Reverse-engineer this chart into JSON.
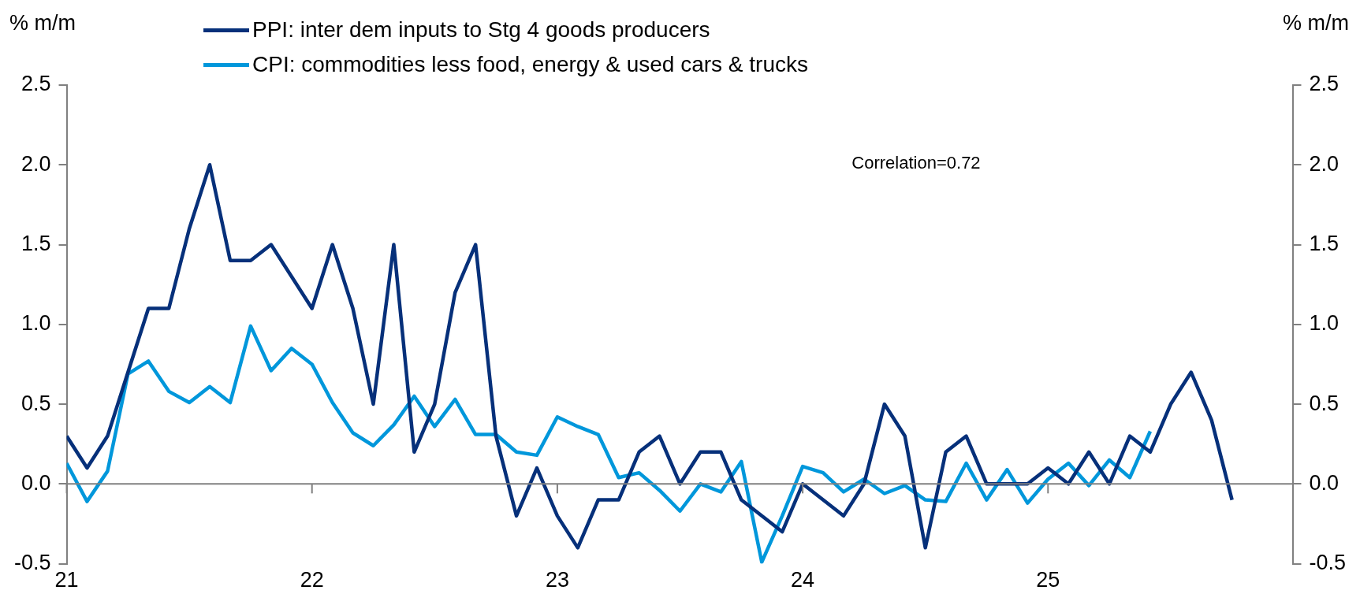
{
  "chart_data": {
    "type": "line",
    "ylabel": "% m/m",
    "y2label": "% m/m",
    "legend": "top",
    "annotations": [
      "Correlation=0.72"
    ],
    "xlim": [
      "2021",
      "2026"
    ],
    "xticks": [
      {
        "value": "2021",
        "label": "21"
      },
      {
        "value": "2022",
        "label": "22"
      },
      {
        "value": "2023",
        "label": "23"
      },
      {
        "value": "2024",
        "label": "24"
      },
      {
        "value": "2025",
        "label": "25"
      }
    ],
    "ylim": [
      -0.5,
      2.5
    ],
    "yticks": [
      {
        "value": -0.5,
        "label": "-0.5"
      },
      {
        "value": 0,
        "label": "0.0"
      },
      {
        "value": 0.5,
        "label": "0.5"
      },
      {
        "value": 1,
        "label": "1.0"
      },
      {
        "value": 1.5,
        "label": "1.5"
      },
      {
        "value": 2,
        "label": "2.0"
      },
      {
        "value": 2.5,
        "label": "2.5"
      }
    ],
    "y2lim": [
      -0.5,
      2.5
    ],
    "y2ticks": [
      {
        "value": -0.5,
        "label": "-0.5"
      },
      {
        "value": 0,
        "label": "0.0"
      },
      {
        "value": 0.5,
        "label": "0.5"
      },
      {
        "value": 1,
        "label": "1.0"
      },
      {
        "value": 1.5,
        "label": "1.5"
      },
      {
        "value": 2,
        "label": "2.0"
      },
      {
        "value": 2.5,
        "label": "2.5"
      }
    ],
    "marker": "none",
    "line_style": "solid",
    "x": [
      "2021-01",
      "2021-02",
      "2021-03",
      "2021-04",
      "2021-05",
      "2021-06",
      "2021-07",
      "2021-08",
      "2021-09",
      "2021-10",
      "2021-11",
      "2021-12",
      "2022-01",
      "2022-02",
      "2022-03",
      "2022-04",
      "2022-05",
      "2022-06",
      "2022-07",
      "2022-08",
      "2022-09",
      "2022-10",
      "2022-11",
      "2022-12",
      "2023-01",
      "2023-02",
      "2023-03",
      "2023-04",
      "2023-05",
      "2023-06",
      "2023-07",
      "2023-08",
      "2023-09",
      "2023-10",
      "2023-11",
      "2023-12",
      "2024-01",
      "2024-02",
      "2024-03",
      "2024-04",
      "2024-05",
      "2024-06",
      "2024-07",
      "2024-08",
      "2024-09",
      "2024-10",
      "2024-11",
      "2024-12",
      "2025-01",
      "2025-02",
      "2025-03",
      "2025-04",
      "2025-05",
      "2025-06",
      "2025-07",
      "2025-08",
      "2025-09",
      "2025-10"
    ],
    "series": [
      {
        "name": "PPI: inter dem inputs to Stg 4 goods producers",
        "color": "#06307a",
        "values": [
          0.3,
          0.1,
          0.3,
          0.7,
          1.1,
          1.1,
          1.6,
          2.0,
          1.4,
          1.4,
          1.5,
          1.3,
          1.1,
          1.5,
          1.1,
          0.5,
          1.5,
          0.2,
          0.5,
          1.2,
          1.5,
          0.3,
          -0.2,
          0.1,
          -0.2,
          -0.4,
          -0.1,
          -0.1,
          0.2,
          0.3,
          0.0,
          0.2,
          0.2,
          -0.1,
          -0.2,
          -0.3,
          0.0,
          -0.1,
          -0.2,
          0.0,
          0.5,
          0.3,
          -0.4,
          0.2,
          0.3,
          0.0,
          0.0,
          0.0,
          0.1,
          0.0,
          0.2,
          0.0,
          0.3,
          0.2,
          0.5,
          0.7,
          0.4,
          -0.1
        ]
      },
      {
        "name": "CPI: commodities less food, energy & used cars & trucks",
        "color": "#0097db",
        "values": [
          0.13,
          -0.11,
          0.08,
          0.69,
          0.77,
          0.58,
          0.51,
          0.61,
          0.51,
          0.99,
          0.71,
          0.85,
          0.75,
          0.51,
          0.32,
          0.24,
          0.37,
          0.55,
          0.36,
          0.53,
          0.31,
          0.31,
          0.2,
          0.18,
          0.42,
          0.36,
          0.31,
          0.04,
          0.07,
          -0.04,
          -0.17,
          0.0,
          -0.05,
          0.14,
          -0.49,
          -0.2,
          0.11,
          0.07,
          -0.05,
          0.03,
          -0.06,
          -0.01,
          -0.1,
          -0.11,
          0.13,
          -0.1,
          0.09,
          -0.12,
          0.03,
          0.13,
          -0.01,
          0.15,
          0.04,
          0.33,
          null,
          null,
          null,
          null
        ]
      }
    ]
  }
}
